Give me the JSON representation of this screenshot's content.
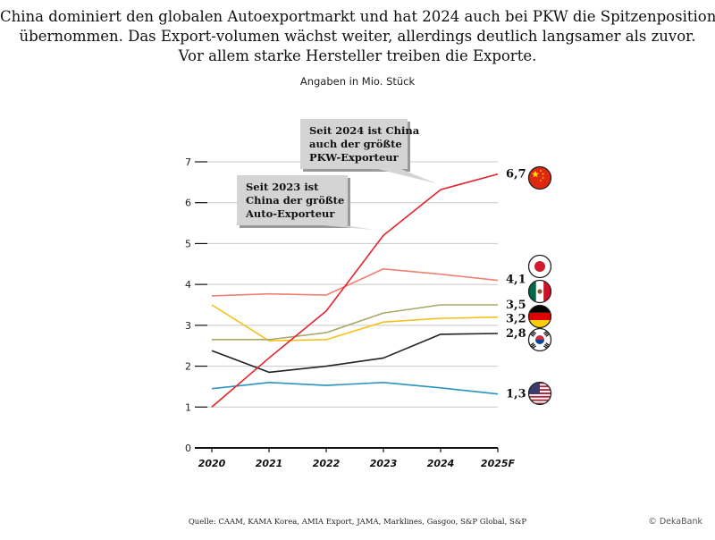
{
  "header": {
    "title_lines": [
      "China dominiert den globalen Autoexportmarkt und hat 2024 auch bei PKW die Spitzenposition",
      "übernommen. Das Export-volumen wächst weiter, allerdings deutlich langsamer als zuvor.",
      "Vor allem starke Hersteller treiben die Exporte."
    ],
    "unit": "Angaben in Mio. Stück"
  },
  "footer": {
    "source": "Quelle: CAAM, KAMA Korea, AMIA Export, JAMA, Marklines, Gasgoo, S&P Global, S&P",
    "credit": "© DekaBank"
  },
  "chart_data": {
    "type": "line",
    "categories": [
      "2020",
      "2021",
      "2022",
      "2023",
      "2024",
      "2025F"
    ],
    "ylim": [
      0,
      7
    ],
    "yticks": [
      0,
      1,
      2,
      3,
      4,
      5,
      6,
      7
    ],
    "grid": true,
    "series": [
      {
        "country": "China",
        "flag": "china-flag",
        "color": "#e3242b",
        "values": [
          1.0,
          2.2,
          3.35,
          5.2,
          6.32,
          6.7
        ],
        "end_label": "6,7"
      },
      {
        "country": "Japan",
        "flag": "japan-flag",
        "color": "#f08070",
        "values": [
          3.72,
          3.77,
          3.74,
          4.38,
          4.25,
          4.1
        ],
        "end_label": "4,1"
      },
      {
        "country": "Mexiko",
        "flag": "mexico-flag",
        "color": "#a8a868",
        "values": [
          2.65,
          2.65,
          2.82,
          3.3,
          3.5,
          3.5
        ],
        "end_label": "3,5"
      },
      {
        "country": "Deutschland",
        "flag": "germany-flag",
        "color": "#f5c11c",
        "values": [
          3.5,
          2.62,
          2.65,
          3.08,
          3.17,
          3.2
        ],
        "end_label": "3,2"
      },
      {
        "country": "Südkorea",
        "flag": "korea-flag",
        "color": "#222222",
        "values": [
          2.38,
          1.85,
          2.0,
          2.2,
          2.78,
          2.8
        ],
        "end_label": "2,8"
      },
      {
        "country": "USA",
        "flag": "usa-flag",
        "color": "#2a93c0",
        "values": [
          1.45,
          1.6,
          1.53,
          1.6,
          1.47,
          1.32
        ],
        "end_label": "1,3"
      }
    ],
    "annotations": [
      {
        "lines": [
          "Seit 2023 ist",
          "China der größte",
          "Auto-Exporteur"
        ],
        "points_to": {
          "x": "2023",
          "y": 5.2
        }
      },
      {
        "lines": [
          "Seit 2024 ist China",
          "auch der größte",
          "PKW-Exporteur"
        ],
        "points_to": {
          "x": "2024",
          "y": 6.32
        }
      }
    ]
  }
}
